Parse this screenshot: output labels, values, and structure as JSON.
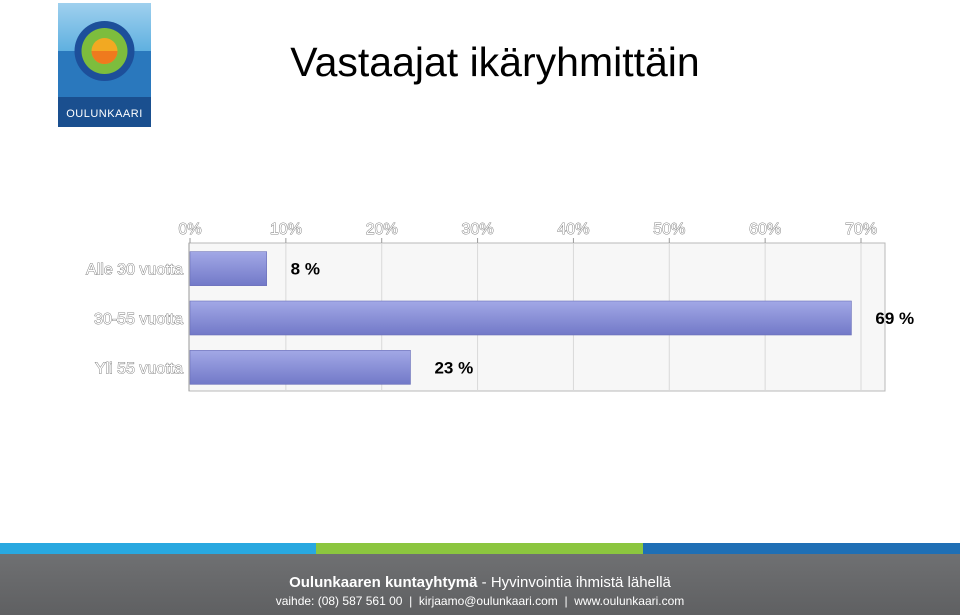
{
  "slide": {
    "title": "Vastaajat ikäryhmittäin",
    "logo_text": "OULUNKAARI"
  },
  "chart_data": {
    "type": "bar",
    "orientation": "horizontal",
    "categories": [
      "Alle 30 vuotta",
      "30-55 vuotta",
      "Yli 55 vuotta"
    ],
    "values": [
      8,
      69,
      23
    ],
    "value_labels": [
      "8 %",
      "69 %",
      "23 %"
    ],
    "xlim": [
      0,
      72
    ],
    "xticks": [
      0,
      10,
      20,
      30,
      40,
      50,
      60,
      70
    ],
    "xtick_labels": [
      "0%",
      "10%",
      "20%",
      "30%",
      "40%",
      "50%",
      "60%",
      "70%"
    ],
    "x_axis_position": "top",
    "grid": true,
    "bar_color": "#8a90d8"
  },
  "footer": {
    "org_name": "Oulunkaaren kuntayhtymä",
    "tagline": " - Hyvinvointia ihmistä lähellä",
    "contact": "vaihde: (08) 587 561 00  |  kirjaamo@oulunkaari.com  |  www.oulunkaari.com",
    "stripe_colors": [
      "#29a8e0",
      "#8cc63f",
      "#1f6fb5"
    ]
  }
}
